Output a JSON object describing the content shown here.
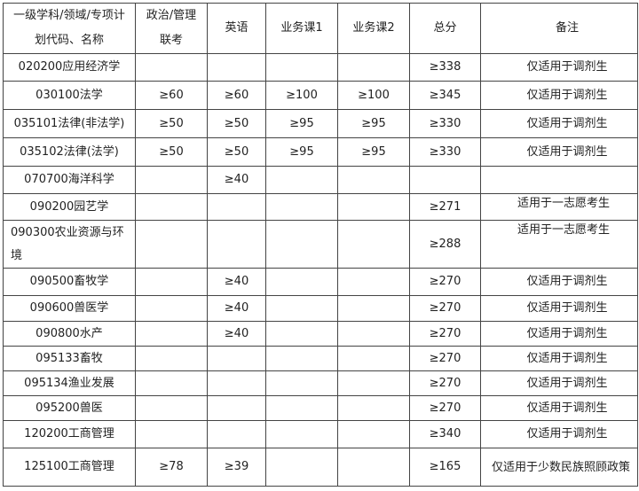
{
  "headers": [
    "一级学科/领域/专项计划代码、名称",
    "政治/管理联考",
    "英语",
    "业务课1",
    "业务课2",
    "总分",
    "备注"
  ],
  "rows": [
    [
      "020200应用经济学",
      "",
      "",
      "",
      "",
      "≥338",
      "仅适用于调剂生"
    ],
    [
      "030100法学",
      "≥60",
      "≥60",
      "≥100",
      "≥100",
      "≥345",
      "仅适用于调剂生"
    ],
    [
      "035101法律(非法学)",
      "≥50",
      "≥50",
      "≥95",
      "≥95",
      "≥330",
      "仅适用于调剂生"
    ],
    [
      "035102法律(法学)",
      "≥50",
      "≥50",
      "≥95",
      "≥95",
      "≥330",
      "仅适用于调剂生"
    ],
    [
      "070700海洋科学",
      "",
      "≥40",
      "",
      "",
      "",
      ""
    ],
    [
      "090200园艺学",
      "",
      "",
      "",
      "",
      "≥271",
      "适用于一志愿考生"
    ],
    [
      "090300农业资源与环境",
      "",
      "",
      "",
      "",
      "≥288",
      "适用于一志愿考生"
    ],
    [
      "090500畜牧学",
      "",
      "≥40",
      "",
      "",
      "≥270",
      "仅适用于调剂生"
    ],
    [
      "090600兽医学",
      "",
      "≥40",
      "",
      "",
      "≥270",
      "仅适用于调剂生"
    ],
    [
      "090800水产",
      "",
      "≥40",
      "",
      "",
      "≥270",
      "仅适用于调剂生"
    ],
    [
      "095133畜牧",
      "",
      "",
      "",
      "",
      "≥270",
      "仅适用于调剂生"
    ],
    [
      "095134渔业发展",
      "",
      "",
      "",
      "",
      "≥270",
      "仅适用于调剂生"
    ],
    [
      "095200兽医",
      "",
      "",
      "",
      "",
      "≥270",
      "仅适用于调剂生"
    ],
    [
      "120200工商管理",
      "",
      "",
      "",
      "",
      "≥340",
      "仅适用于调剂生"
    ],
    [
      "125100工商管理",
      "≥78",
      "≥39",
      "",
      "",
      "≥165",
      "仅适用于少数民族照顾政策"
    ]
  ]
}
